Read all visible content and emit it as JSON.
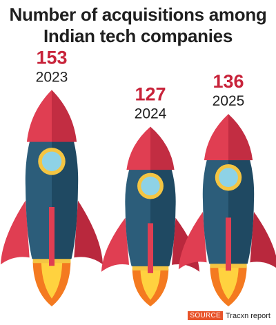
{
  "title_lines": [
    "Number of acquisitions among",
    "Indian tech companies"
  ],
  "source": {
    "tag": "SOURCE",
    "text": "Tracxn report"
  },
  "colors": {
    "value": "#c8233a",
    "nose": "#e03e52",
    "nose_shade": "#c22d42",
    "body": "#2c5d7a",
    "body_shade": "#1f4962",
    "window_ring": "#f4c542",
    "window_glass": "#8ed2e6",
    "fin": "#e03e52",
    "fin_shade": "#b9283d",
    "nozzle": "#f4c542",
    "flame_outer": "#f47a20",
    "flame_inner": "#ffd23f"
  },
  "chart_data": {
    "type": "bar",
    "categories": [
      "2023",
      "2024",
      "2025"
    ],
    "values": [
      153,
      127,
      136
    ],
    "title": "Number of acquisitions among Indian tech companies",
    "xlabel": "",
    "ylabel": ""
  }
}
